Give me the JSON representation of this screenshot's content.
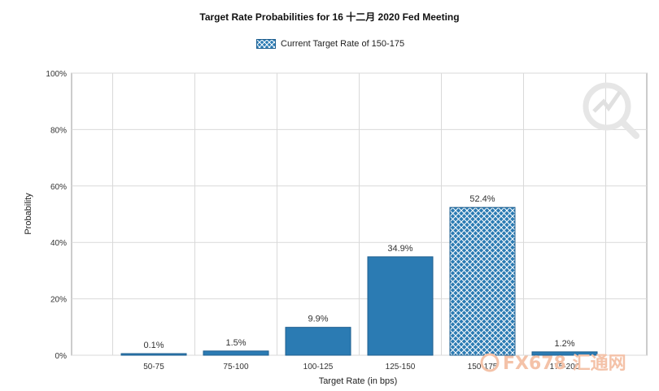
{
  "chart_data": {
    "type": "bar",
    "title": "Target Rate Probabilities for 16 十二月 2020 Fed Meeting",
    "xlabel": "Target Rate (in bps)",
    "ylabel": "Probability",
    "categories": [
      "50-75",
      "75-100",
      "100-125",
      "125-150",
      "150-175",
      "175-200"
    ],
    "values": [
      0.1,
      1.5,
      9.9,
      34.9,
      52.4,
      1.2
    ],
    "value_labels": [
      "0.1%",
      "1.5%",
      "9.9%",
      "34.9%",
      "52.4%",
      "1.2%"
    ],
    "ylim": [
      0,
      100
    ],
    "y_ticks": [
      "0%",
      "20%",
      "40%",
      "60%",
      "80%",
      "100%"
    ],
    "y_tick_values": [
      0,
      20,
      40,
      60,
      80,
      100
    ],
    "highlight_category": "150-175",
    "legend": {
      "label": "Current Target Rate of 150-175",
      "placement": "top-center"
    },
    "grid": true,
    "colors": {
      "bar": "#2b7bb3",
      "bar_edge": "#1f5f8f",
      "hatch_line": "#ffffff",
      "grid": "#d9d9d9",
      "axis": "#999999"
    }
  },
  "watermark": {
    "text": "FX678 汇通网"
  }
}
